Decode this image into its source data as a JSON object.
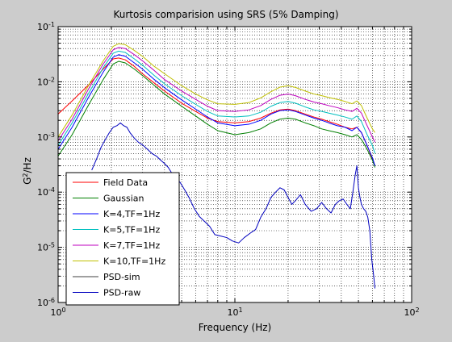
{
  "figure": {
    "background": "#cccccc"
  },
  "chart_data": {
    "type": "line",
    "title": "Kurtosis comparision using SRS (5% Damping)",
    "xlabel": "Frequency (Hz)",
    "ylabel_base": "G",
    "ylabel_exp": "2",
    "ylabel_tail": "/Hz",
    "xscale": "log",
    "yscale": "log",
    "xlim": [
      1,
      100
    ],
    "ylim": [
      1e-06,
      0.1
    ],
    "grid": true,
    "x_ticks": [
      {
        "value": 1,
        "label_base": "10",
        "label_exp": "0"
      },
      {
        "value": 10,
        "label_base": "10",
        "label_exp": "1"
      },
      {
        "value": 100,
        "label_base": "10",
        "label_exp": "2"
      }
    ],
    "y_ticks": [
      {
        "value": 1e-06,
        "label_base": "10",
        "label_exp": "-6"
      },
      {
        "value": 1e-05,
        "label_base": "10",
        "label_exp": "-5"
      },
      {
        "value": 0.0001,
        "label_base": "10",
        "label_exp": "-4"
      },
      {
        "value": 0.001,
        "label_base": "10",
        "label_exp": "-3"
      },
      {
        "value": 0.01,
        "label_base": "10",
        "label_exp": "-2"
      },
      {
        "value": 0.1,
        "label_base": "10",
        "label_exp": "-1"
      }
    ],
    "legend_position": "lower-left",
    "series": [
      {
        "name": "Field Data",
        "color": "#ff0000",
        "x": [
          1,
          1.2,
          1.5,
          1.8,
          2.05,
          2.2,
          2.4,
          2.7,
          3,
          3.5,
          4,
          5,
          6,
          7,
          8,
          10,
          12,
          14,
          16,
          18,
          20,
          22,
          25,
          28,
          31,
          34,
          38,
          42,
          46,
          49,
          52,
          56,
          60,
          62
        ],
        "y": [
          0.0026,
          0.0045,
          0.009,
          0.017,
          0.026,
          0.027,
          0.025,
          0.019,
          0.014,
          0.0095,
          0.0068,
          0.0041,
          0.0029,
          0.0022,
          0.0019,
          0.0018,
          0.0019,
          0.0022,
          0.0027,
          0.0031,
          0.0032,
          0.003,
          0.0026,
          0.0023,
          0.0021,
          0.0019,
          0.0017,
          0.0015,
          0.0014,
          0.0015,
          0.0012,
          0.0007,
          0.0004,
          0.0003
        ]
      },
      {
        "name": "Gaussian",
        "color": "#007f00",
        "x": [
          1,
          1.2,
          1.5,
          1.8,
          2.05,
          2.2,
          2.4,
          2.7,
          3,
          3.5,
          4,
          5,
          6,
          7,
          8,
          10,
          12,
          14,
          16,
          18,
          20,
          22,
          25,
          28,
          31,
          34,
          38,
          42,
          46,
          49,
          52,
          56,
          60,
          62
        ],
        "y": [
          0.00045,
          0.0011,
          0.004,
          0.011,
          0.021,
          0.0235,
          0.022,
          0.017,
          0.013,
          0.0086,
          0.006,
          0.0036,
          0.0024,
          0.0017,
          0.0013,
          0.0011,
          0.0012,
          0.0014,
          0.0018,
          0.0021,
          0.0022,
          0.0021,
          0.0018,
          0.0016,
          0.0014,
          0.0013,
          0.0012,
          0.0011,
          0.001,
          0.0011,
          0.0009,
          0.0006,
          0.00038,
          0.00028
        ]
      },
      {
        "name": "K=4,TF=1Hz",
        "color": "#0000ff",
        "x": [
          1,
          1.2,
          1.5,
          1.8,
          2.05,
          2.2,
          2.4,
          2.7,
          3,
          3.5,
          4,
          5,
          6,
          7,
          8,
          10,
          12,
          14,
          16,
          18,
          20,
          22,
          25,
          28,
          31,
          34,
          38,
          42,
          46,
          49,
          52,
          56,
          60,
          62
        ],
        "y": [
          0.0006,
          0.0015,
          0.0055,
          0.015,
          0.028,
          0.031,
          0.029,
          0.022,
          0.017,
          0.011,
          0.0078,
          0.0047,
          0.0032,
          0.0023,
          0.0018,
          0.0016,
          0.0017,
          0.002,
          0.0026,
          0.003,
          0.0031,
          0.0029,
          0.0025,
          0.0022,
          0.002,
          0.0018,
          0.0016,
          0.0015,
          0.0013,
          0.0015,
          0.0012,
          0.0007,
          0.00042,
          0.0003
        ]
      },
      {
        "name": "K=5,TF=1Hz",
        "color": "#00bfbf",
        "x": [
          1,
          1.2,
          1.5,
          1.8,
          2.05,
          2.2,
          2.4,
          2.7,
          3,
          3.5,
          4,
          5,
          6,
          7,
          8,
          10,
          12,
          14,
          16,
          18,
          20,
          22,
          25,
          28,
          31,
          34,
          38,
          42,
          46,
          49,
          52,
          56,
          60,
          62
        ],
        "y": [
          0.0007,
          0.0018,
          0.0065,
          0.018,
          0.033,
          0.036,
          0.034,
          0.026,
          0.02,
          0.013,
          0.0092,
          0.0056,
          0.0039,
          0.0029,
          0.0024,
          0.0023,
          0.0024,
          0.0028,
          0.0036,
          0.0042,
          0.0044,
          0.0041,
          0.0035,
          0.0031,
          0.0029,
          0.0027,
          0.0025,
          0.0023,
          0.0021,
          0.0024,
          0.0019,
          0.0011,
          0.0007,
          0.0005
        ]
      },
      {
        "name": "K=7,TF=1Hz",
        "color": "#bf00bf",
        "x": [
          1,
          1.2,
          1.5,
          1.8,
          2.05,
          2.2,
          2.4,
          2.7,
          3,
          3.5,
          4,
          5,
          6,
          7,
          8,
          10,
          12,
          14,
          16,
          18,
          20,
          22,
          25,
          28,
          31,
          34,
          38,
          42,
          46,
          49,
          52,
          56,
          60,
          62
        ],
        "y": [
          0.00085,
          0.0021,
          0.0078,
          0.021,
          0.038,
          0.042,
          0.04,
          0.031,
          0.024,
          0.016,
          0.011,
          0.0068,
          0.0048,
          0.0036,
          0.003,
          0.0029,
          0.0031,
          0.0037,
          0.0048,
          0.0057,
          0.006,
          0.0056,
          0.0048,
          0.0043,
          0.004,
          0.0037,
          0.0034,
          0.0031,
          0.0029,
          0.0033,
          0.0027,
          0.0016,
          0.001,
          0.0008
        ]
      },
      {
        "name": "K=10,TF=1Hz",
        "color": "#bfbf00",
        "x": [
          1,
          1.2,
          1.5,
          1.8,
          2.05,
          2.2,
          2.4,
          2.7,
          3,
          3.5,
          4,
          5,
          6,
          7,
          8,
          10,
          12,
          14,
          16,
          18,
          20,
          22,
          25,
          28,
          31,
          34,
          38,
          42,
          46,
          49,
          52,
          56,
          60,
          62
        ],
        "y": [
          0.001,
          0.0025,
          0.009,
          0.024,
          0.044,
          0.049,
          0.047,
          0.037,
          0.029,
          0.019,
          0.014,
          0.0085,
          0.006,
          0.0047,
          0.004,
          0.0039,
          0.0042,
          0.0051,
          0.0066,
          0.008,
          0.0085,
          0.0079,
          0.0068,
          0.006,
          0.0056,
          0.0052,
          0.0048,
          0.0044,
          0.004,
          0.0045,
          0.0037,
          0.0022,
          0.0014,
          0.0012
        ]
      },
      {
        "name": "PSD-sim",
        "color": "#404040",
        "x": [],
        "y": []
      },
      {
        "name": "PSD-raw",
        "color": "#0000bf",
        "x": [
          1.55,
          1.65,
          1.75,
          1.85,
          1.95,
          2.05,
          2.15,
          2.25,
          2.35,
          2.45,
          2.55,
          2.7,
          2.85,
          3.0,
          3.2,
          3.4,
          3.6,
          3.8,
          4.0,
          4.2,
          4.4,
          4.6,
          4.9,
          5.2,
          5.5,
          5.9,
          6.3,
          6.7,
          7.2,
          7.7,
          8.3,
          9.0,
          9.7,
          10.5,
          11.3,
          12.2,
          13.1,
          14.0,
          15.0,
          16.0,
          17.0,
          18.0,
          19.0,
          20.0,
          21.0,
          22.0,
          23.5,
          25.0,
          27.0,
          29.0,
          31.0,
          33.0,
          35.0,
          37.0,
          39.0,
          41.0,
          43.0,
          45.0,
          46.5,
          48.0,
          49.0,
          50.0,
          51.0,
          52.0,
          53.5,
          55.0,
          56.5,
          58.0,
          59.5,
          61.0,
          62.0
        ],
        "y": [
          0.00025,
          0.0004,
          0.00065,
          0.0009,
          0.0012,
          0.0015,
          0.0016,
          0.0018,
          0.0016,
          0.0015,
          0.0012,
          0.00095,
          0.0008,
          0.00072,
          0.0006,
          0.0005,
          0.00045,
          0.00038,
          0.00033,
          0.00028,
          0.00022,
          0.00018,
          0.00015,
          0.00011,
          8e-05,
          5e-05,
          3.6e-05,
          3e-05,
          2.4e-05,
          1.7e-05,
          1.6e-05,
          1.5e-05,
          1.3e-05,
          1.2e-05,
          1.5e-05,
          1.8e-05,
          2.1e-05,
          3.5e-05,
          5e-05,
          8e-05,
          0.0001,
          0.00012,
          0.00011,
          8e-05,
          6e-05,
          7e-05,
          9e-05,
          6e-05,
          4.5e-05,
          5e-05,
          6.5e-05,
          5e-05,
          4.2e-05,
          6e-05,
          7e-05,
          7.5e-05,
          6e-05,
          5e-05,
          0.0001,
          0.00021,
          0.0003,
          0.00012,
          8e-05,
          6e-05,
          5e-05,
          4.5e-05,
          3.5e-05,
          2e-05,
          6e-06,
          3e-06,
          1.8e-06
        ]
      }
    ]
  }
}
